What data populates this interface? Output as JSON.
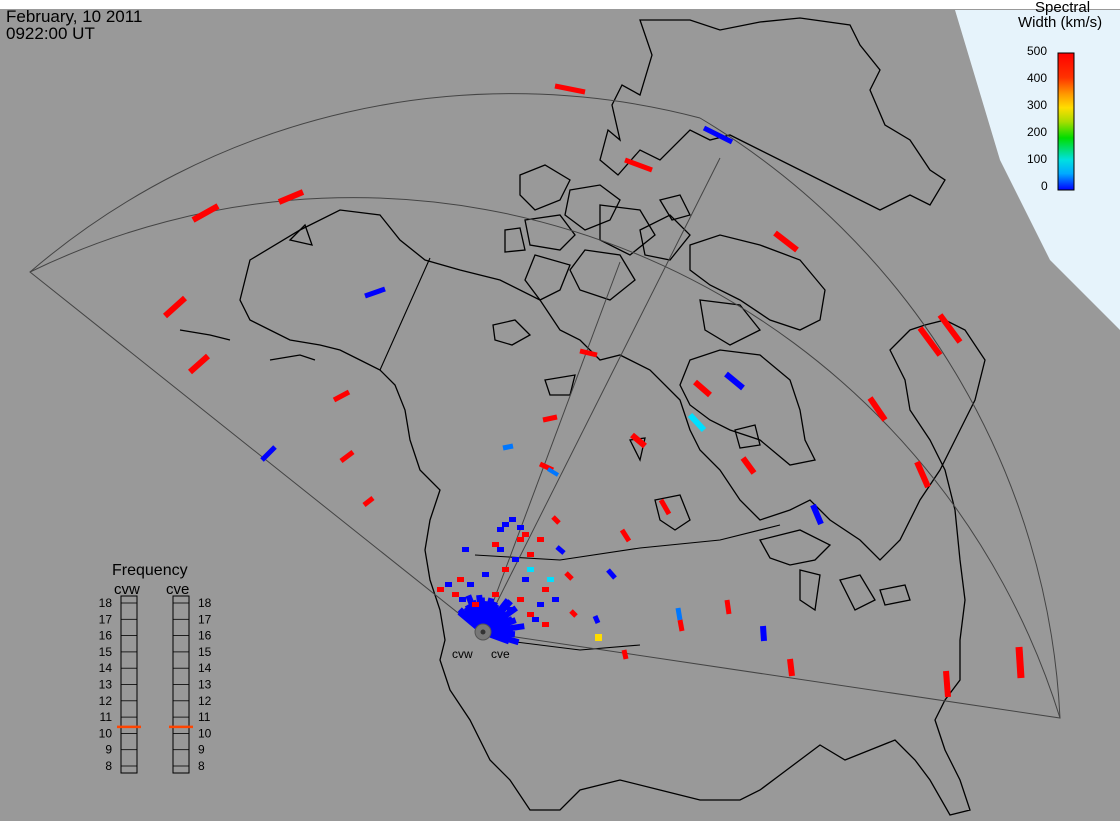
{
  "header": {
    "date": "February, 10 2011",
    "time": "0922:00 UT"
  },
  "color_bar": {
    "title_line1": "Spectral",
    "title_line2": "Width (km/s)",
    "ticks": [
      "500",
      "400",
      "300",
      "200",
      "100",
      "0"
    ],
    "colors": [
      "#0000ff",
      "#00aaff",
      "#00e0e0",
      "#00dd00",
      "#aadd00",
      "#ffdd00",
      "#ff9900",
      "#ff3300",
      "#ff0000"
    ]
  },
  "frequency_panel": {
    "title": "Frequency",
    "left_label": "cvw",
    "right_label": "cve",
    "ticks": [
      "18",
      "17",
      "16",
      "15",
      "14",
      "13",
      "12",
      "11",
      "10",
      "9",
      "8"
    ],
    "cvw_freq_mhz": 10.4,
    "cve_freq_mhz": 10.4,
    "marker_color": "#ff4400"
  },
  "radars": [
    {
      "label": "cvw"
    },
    {
      "label": "cve"
    }
  ],
  "colors": {
    "background": "#999999",
    "land_outline": "#000000",
    "fov_outline": "#444444",
    "red": "#ff0000",
    "blue": "#0000ff",
    "light_blue": "#0077ff",
    "cyan": "#00e0ff",
    "yellow": "#ffdd00"
  }
}
